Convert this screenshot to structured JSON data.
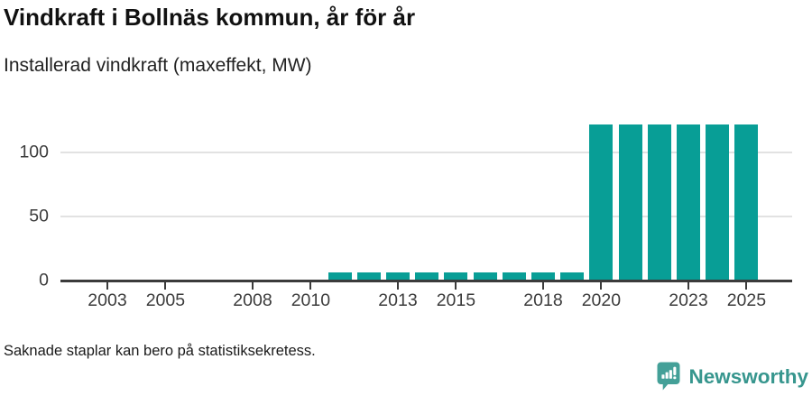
{
  "header": {
    "title": "Vindkraft i Bollnäs kommun, år för år",
    "subtitle": "Installerad vindkraft (maxeffekt, MW)"
  },
  "footer": {
    "note": "Saknade staplar kan bero på statistiksekretess.",
    "brand": "Newsworthy"
  },
  "colors": {
    "bar": "#089e96",
    "brand_teal": "#44a098",
    "brand_text": "#37968e",
    "grid": "#e2e2e2",
    "axis": "#3b3b3b",
    "tick_text": "#3c3c3c"
  },
  "chart_data": {
    "type": "bar",
    "title": "Vindkraft i Bollnäs kommun, år för år",
    "subtitle": "Installerad vindkraft (maxeffekt, MW)",
    "ylabel": "MW",
    "categories": [
      2002,
      2003,
      2004,
      2005,
      2006,
      2007,
      2008,
      2009,
      2010,
      2011,
      2012,
      2013,
      2014,
      2015,
      2016,
      2017,
      2018,
      2019,
      2020,
      2021,
      2022,
      2023,
      2024,
      2025
    ],
    "values": [
      0,
      0,
      0,
      0,
      0,
      0,
      0,
      0,
      0,
      6,
      6,
      6,
      6,
      6,
      6,
      6,
      6,
      6,
      122,
      122,
      122,
      122,
      122,
      122
    ],
    "x_tick_years": [
      2003,
      2005,
      2008,
      2010,
      2013,
      2015,
      2018,
      2020,
      2023,
      2025
    ],
    "y_ticks": [
      0,
      50,
      100
    ],
    "ylim": [
      0,
      129
    ],
    "xlim": [
      2001.5,
      2026.5
    ],
    "grid": "horizontal-only",
    "legend": "none",
    "note": "Saknade staplar kan bero på statistiksekretess."
  }
}
